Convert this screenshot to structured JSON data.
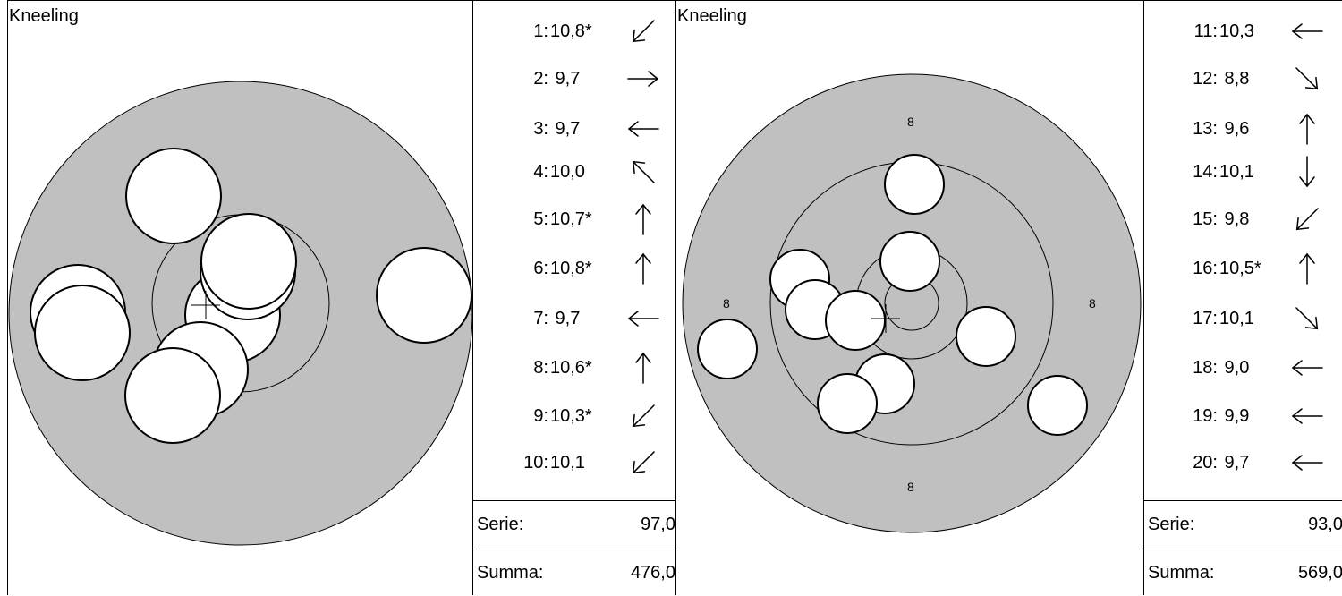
{
  "panels": [
    {
      "title": "Kneeling",
      "ring_labels": [],
      "shots": [
        {
          "no": "1:",
          "value": "10,8*",
          "arrow": "down-left"
        },
        {
          "no": "2:",
          "value": " 9,7",
          "arrow": "right"
        },
        {
          "no": "3:",
          "value": " 9,7",
          "arrow": "left"
        },
        {
          "no": "4:",
          "value": "10,0",
          "arrow": "up-left"
        },
        {
          "no": "5:",
          "value": "10,7*",
          "arrow": "up"
        },
        {
          "no": "6:",
          "value": "10,8*",
          "arrow": "up"
        },
        {
          "no": "7:",
          "value": " 9,7",
          "arrow": "left"
        },
        {
          "no": "8:",
          "value": "10,6*",
          "arrow": "up"
        },
        {
          "no": "9:",
          "value": "10,3*",
          "arrow": "down-left"
        },
        {
          "no": "10:",
          "value": "10,1",
          "arrow": "down-left"
        }
      ],
      "serie_label": "Serie:",
      "serie_value": "97,0",
      "summa_label": "Summa:",
      "summa_value": "476,0"
    },
    {
      "title": "Kneeling",
      "ring_labels": [
        "8",
        "8",
        "8",
        "8"
      ],
      "shots": [
        {
          "no": "11:",
          "value": "10,3",
          "arrow": "left"
        },
        {
          "no": "12:",
          "value": " 8,8",
          "arrow": "down-right"
        },
        {
          "no": "13:",
          "value": " 9,6",
          "arrow": "up"
        },
        {
          "no": "14:",
          "value": "10,1",
          "arrow": "down"
        },
        {
          "no": "15:",
          "value": " 9,8",
          "arrow": "down-left"
        },
        {
          "no": "16:",
          "value": "10,5*",
          "arrow": "up"
        },
        {
          "no": "17:",
          "value": "10,1",
          "arrow": "down-right"
        },
        {
          "no": "18:",
          "value": " 9,0",
          "arrow": "left"
        },
        {
          "no": "19:",
          "value": " 9,9",
          "arrow": "left"
        },
        {
          "no": "20:",
          "value": " 9,7",
          "arrow": "left"
        }
      ],
      "serie_label": "Serie:",
      "serie_value": "93,0",
      "summa_label": "Summa:",
      "summa_value": "569,0"
    }
  ],
  "colors": {
    "target_fill": "#c0c0c0",
    "hole_fill": "#ffffff",
    "line": "#000000"
  }
}
